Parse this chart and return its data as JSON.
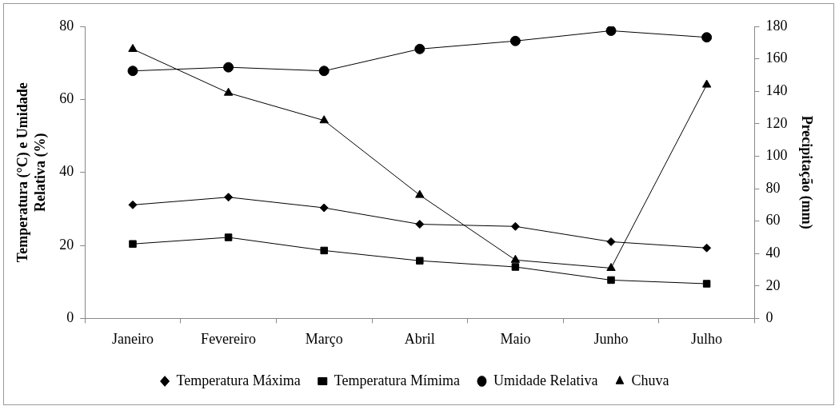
{
  "chart_data": {
    "type": "line",
    "ylabel": "Temperatura (°C) e Umidade Relativa (%)",
    "y2label": "Precipitação (mm)",
    "categories": [
      "Janeiro",
      "Fevereiro",
      "Março",
      "Abril",
      "Maio",
      "Junho",
      "Julho"
    ],
    "series": [
      {
        "name": "Temperatura Máxima",
        "color": "#000000",
        "marker": "diamond",
        "values": [
          31.1,
          33.2,
          30.3,
          25.8,
          25.2,
          21.0,
          19.3
        ]
      },
      {
        "name": "Temperatura Mímima",
        "color": "#000000",
        "marker": "square",
        "values": [
          20.4,
          22.2,
          18.6,
          15.8,
          14.1,
          10.5,
          9.5
        ]
      },
      {
        "name": "Umidade Relativa",
        "color": "#000000",
        "marker": "circle",
        "values": [
          67.8,
          68.8,
          67.8,
          73.8,
          76.0,
          78.8,
          77.0
        ]
      },
      {
        "name": "Chuva",
        "color": "#000000",
        "marker": "triangle",
        "axis": "y2",
        "values": [
          166,
          139,
          122,
          76,
          36,
          31,
          144
        ]
      }
    ],
    "ylim": [
      0,
      80
    ],
    "yticks": [
      0,
      20,
      40,
      60,
      80
    ],
    "y2lim": [
      0,
      180
    ],
    "y2ticks": [
      0,
      20,
      40,
      60,
      80,
      100,
      120,
      140,
      160,
      180
    ],
    "grid": false,
    "legend": "bottom",
    "line_style": "solid"
  }
}
